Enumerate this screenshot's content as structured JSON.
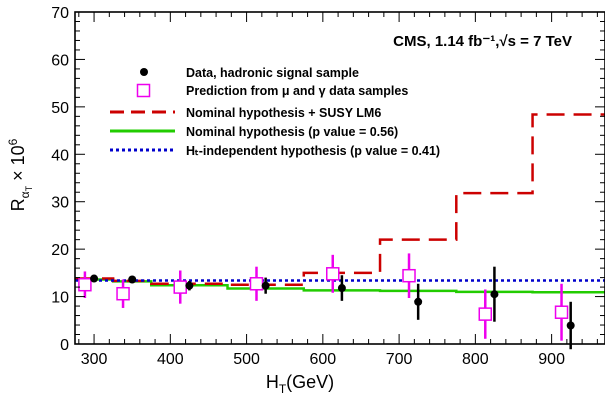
{
  "chart_data": {
    "type": "line",
    "headline": "CMS, 1.14 fb⁻¹,√s = 7 TeV",
    "xlabel": "Hₜ(GeV)",
    "ylabel": "Rαₜ × 10⁶",
    "xlim": [
      275,
      970
    ],
    "ylim": [
      0,
      70
    ],
    "xticks": [
      300,
      400,
      500,
      600,
      700,
      800,
      900
    ],
    "yticks": [
      0,
      10,
      20,
      30,
      40,
      50,
      60,
      70
    ],
    "grid": false,
    "legend_position": "top-right",
    "legend": [
      {
        "key": "data",
        "label": "Data, hadronic signal sample"
      },
      {
        "key": "prediction",
        "label": "Prediction from μ and γ data samples"
      },
      {
        "key": "susy",
        "label": "Nominal hypothesis + SUSY LM6"
      },
      {
        "key": "nominal",
        "label": "Nominal hypothesis (p value = 0.56)"
      },
      {
        "key": "ht_indep",
        "label": "Hₜ-independent hypothesis (p value = 0.41)"
      }
    ],
    "bins": [
      [
        275,
        325
      ],
      [
        325,
        375
      ],
      [
        375,
        475
      ],
      [
        475,
        575
      ],
      [
        575,
        675
      ],
      [
        675,
        775
      ],
      [
        775,
        875
      ],
      [
        875,
        975
      ]
    ],
    "series": [
      {
        "name": "Data, hadronic signal sample",
        "style": "points",
        "color": "#000000",
        "x": [
          300,
          350,
          425,
          525,
          625,
          725,
          825,
          925
        ],
        "y": [
          13.8,
          13.6,
          12.3,
          12.3,
          11.8,
          8.9,
          10.5,
          3.9
        ],
        "err": [
          0.6,
          0.7,
          1.0,
          1.7,
          2.7,
          3.8,
          5.8,
          5.0
        ]
      },
      {
        "name": "Prediction from μ and γ data samples",
        "style": "open-squares",
        "color": "#ee00ee",
        "x": [
          288,
          338,
          413,
          513,
          613,
          713,
          813,
          913
        ],
        "y": [
          12.5,
          10.6,
          12.0,
          12.7,
          14.8,
          14.4,
          6.3,
          6.7
        ],
        "err": [
          2.8,
          3.0,
          3.5,
          3.6,
          4.0,
          4.7,
          5.2,
          6.0
        ]
      },
      {
        "name": "Nominal hypothesis + SUSY LM6",
        "style": "step-dashed",
        "color": "#cc0000",
        "values": [
          13.8,
          13.3,
          12.7,
          12.5,
          15.0,
          22.0,
          31.8,
          48.4
        ]
      },
      {
        "name": "Nominal hypothesis (p value = 0.56)",
        "style": "step-solid",
        "color": "#22cc00",
        "values": [
          13.6,
          13.2,
          12.4,
          11.7,
          11.3,
          11.2,
          11.0,
          10.9
        ]
      },
      {
        "name": "Hₜ-independent hypothesis (p value = 0.41)",
        "style": "dotted",
        "color": "#0000cc",
        "value": 13.4
      }
    ]
  }
}
